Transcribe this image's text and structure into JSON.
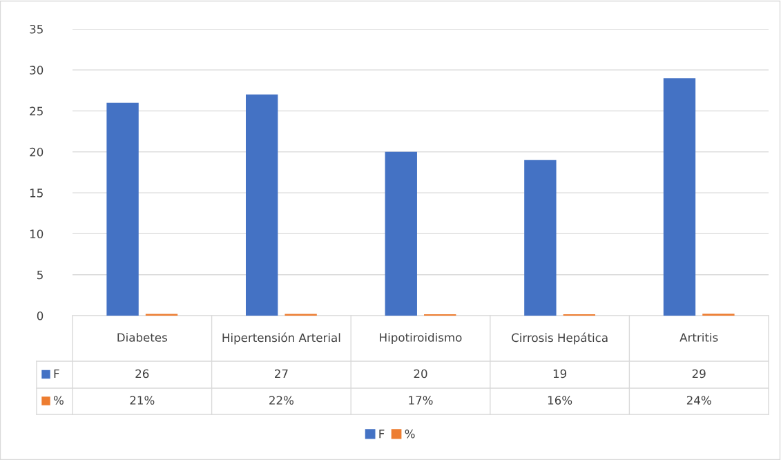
{
  "chart_data": {
    "type": "bar",
    "categories": [
      "Diabetes",
      "Hipertensión Arterial",
      "Hipotiroidismo",
      "Cirrosis Hepática",
      "Artritis"
    ],
    "series": [
      {
        "name": "F",
        "color": "#4472c4",
        "values": [
          26,
          27,
          20,
          19,
          29
        ],
        "value_labels": [
          "26",
          "27",
          "20",
          "19",
          "29"
        ]
      },
      {
        "name": "%",
        "color": "#ed7d31",
        "values": [
          0.21,
          0.22,
          0.17,
          0.16,
          0.24
        ],
        "value_labels": [
          "21%",
          "22%",
          "17%",
          "16%",
          "24%"
        ]
      }
    ],
    "ylim": [
      0,
      35
    ],
    "yticks": [
      0,
      5,
      10,
      15,
      20,
      25,
      30,
      35
    ],
    "grid": "y",
    "legend": "bottom"
  }
}
